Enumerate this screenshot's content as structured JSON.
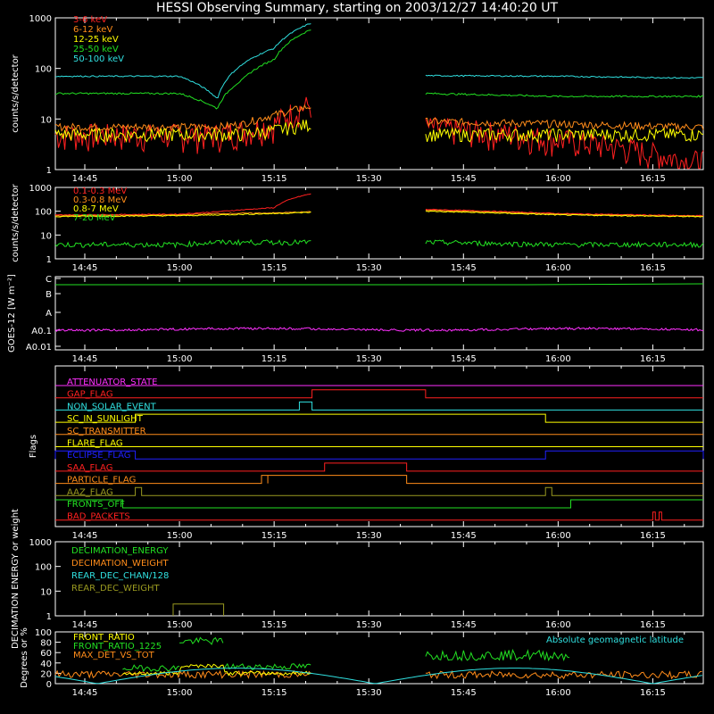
{
  "title": "HESSI Observing Summary, starting on 2003/12/27 14:40:20 UT",
  "time_ticks": [
    "14:45",
    "15:00",
    "15:15",
    "15:30",
    "15:45",
    "16:00",
    "16:15"
  ],
  "colors": {
    "red": "#ff2020",
    "orange": "#ff8c1a",
    "yellow": "#ffff00",
    "green": "#22e022",
    "cyan": "#30e0e0",
    "magenta": "#ff30ff",
    "blue": "#2020ff",
    "olive": "#9a9a20",
    "darkgreen": "#20c020",
    "white": "#ffffff"
  },
  "chart_data": [
    {
      "type": "line",
      "ylabel": "counts/s/detector",
      "scale": "log",
      "ylim": [
        1,
        1000
      ],
      "y_tick_labels": [
        "1",
        "10",
        "100",
        "1000"
      ],
      "x": [
        "14:40",
        "15:00",
        "15:06",
        "15:10",
        "15:15",
        "15:21",
        "15:39",
        "16:00",
        "16:20"
      ],
      "series": [
        {
          "name": "3-6 keV",
          "color": "#ff2020",
          "values": [
            5,
            5,
            5,
            6,
            8,
            20,
            7,
            4,
            1.5
          ]
        },
        {
          "name": "6-12 keV",
          "color": "#ff8c1a",
          "values": [
            7,
            7,
            7,
            8,
            12,
            18,
            9,
            8,
            7
          ]
        },
        {
          "name": "12-25 keV",
          "color": "#ffff00",
          "values": [
            5,
            5,
            5,
            5,
            6,
            8,
            5,
            5,
            5
          ]
        },
        {
          "name": "25-50 keV",
          "color": "#22e022",
          "values": [
            32,
            32,
            16,
            60,
            150,
            600,
            32,
            28,
            28
          ]
        },
        {
          "name": "50-100 keV",
          "color": "#30e0e0",
          "values": [
            70,
            70,
            25,
            120,
            250,
            800,
            72,
            70,
            65
          ]
        }
      ]
    },
    {
      "type": "line",
      "ylabel": "counts/s/detector",
      "scale": "log",
      "ylim": [
        1,
        1000
      ],
      "y_tick_labels": [
        "1",
        "10",
        "100",
        "1000"
      ],
      "x": [
        "14:40",
        "15:00",
        "15:06",
        "15:15",
        "15:21",
        "15:39",
        "16:00",
        "16:20"
      ],
      "series": [
        {
          "name": "0.1-0.3 MeV",
          "color": "#ff2020",
          "values": [
            70,
            75,
            95,
            140,
            550,
            120,
            80,
            65
          ]
        },
        {
          "name": "0.3-0.8 MeV",
          "color": "#ff8c1a",
          "values": [
            65,
            70,
            80,
            85,
            95,
            110,
            75,
            62
          ]
        },
        {
          "name": "0.8-7 MeV",
          "color": "#ffff00",
          "values": [
            60,
            65,
            70,
            80,
            90,
            100,
            70,
            60
          ]
        },
        {
          "name": "7-20 MeV",
          "color": "#22e022",
          "values": [
            4,
            4,
            5,
            5,
            5,
            5,
            4,
            4
          ]
        }
      ]
    },
    {
      "type": "line",
      "ylabel": "GOES-12 [W m⁻²]",
      "y_tick_labels": [
        "A0.01",
        "A0.1",
        "A",
        "B",
        "C"
      ],
      "series": [
        {
          "name": "",
          "color": "#ff30ff",
          "values": [
            0.13,
            0.13,
            0.12,
            0.13
          ]
        },
        {
          "name": "",
          "color": "#22e022",
          "values": [
            1.5,
            1.5,
            1.6
          ]
        }
      ]
    },
    {
      "type": "table",
      "ylabel": "Flags",
      "flags": [
        {
          "name": "ATTENUATOR_STATE",
          "color": "#ff30ff"
        },
        {
          "name": "GAP_FLAG",
          "color": "#ff2020"
        },
        {
          "name": "NON_SOLAR_EVENT",
          "color": "#30e0e0"
        },
        {
          "name": "SC_IN_SUNLIGHT",
          "color": "#ffff00"
        },
        {
          "name": "SC_TRANSMITTER",
          "color": "#ff8c1a"
        },
        {
          "name": "FLARE_FLAG",
          "color": "#ffff00"
        },
        {
          "name": "ECLIPSE_FLAG",
          "color": "#2020ff"
        },
        {
          "name": "SAA_FLAG",
          "color": "#ff2020"
        },
        {
          "name": "PARTICLE_FLAG",
          "color": "#ff8c1a"
        },
        {
          "name": "AAZ_FLAG",
          "color": "#9a9a20"
        },
        {
          "name": "FRONTS_OFF",
          "color": "#22e022"
        },
        {
          "name": "BAD_PACKETS",
          "color": "#ff2020"
        }
      ]
    },
    {
      "type": "line",
      "ylabel": "DECIMATION ENERGY or weight",
      "scale": "log",
      "ylim": [
        1,
        1000
      ],
      "y_tick_labels": [
        "1",
        "10",
        "100",
        "1000"
      ],
      "series": [
        {
          "name": "DECIMATION_ENERGY",
          "color": "#22e022"
        },
        {
          "name": "DECIMATION_WEIGHT",
          "color": "#ff8c1a"
        },
        {
          "name": "REAR_DEC_CHAN/128",
          "color": "#30e0e0"
        },
        {
          "name": "REAR_DEC_WEIGHT",
          "color": "#9a9a20"
        }
      ]
    },
    {
      "type": "line",
      "ylabel": "Degrees or %",
      "ylim": [
        0,
        100
      ],
      "y_tick_labels": [
        "0",
        "20",
        "40",
        "60",
        "80",
        "100"
      ],
      "annotation": "Absolute geomagnetic latitude",
      "series": [
        {
          "name": "FRONT_RATIO",
          "color": "#ffff00"
        },
        {
          "name": "FRONT_RATIO_1225",
          "color": "#22e022"
        },
        {
          "name": "MAX_DET_VS_TOT",
          "color": "#ff8c1a"
        }
      ]
    }
  ]
}
